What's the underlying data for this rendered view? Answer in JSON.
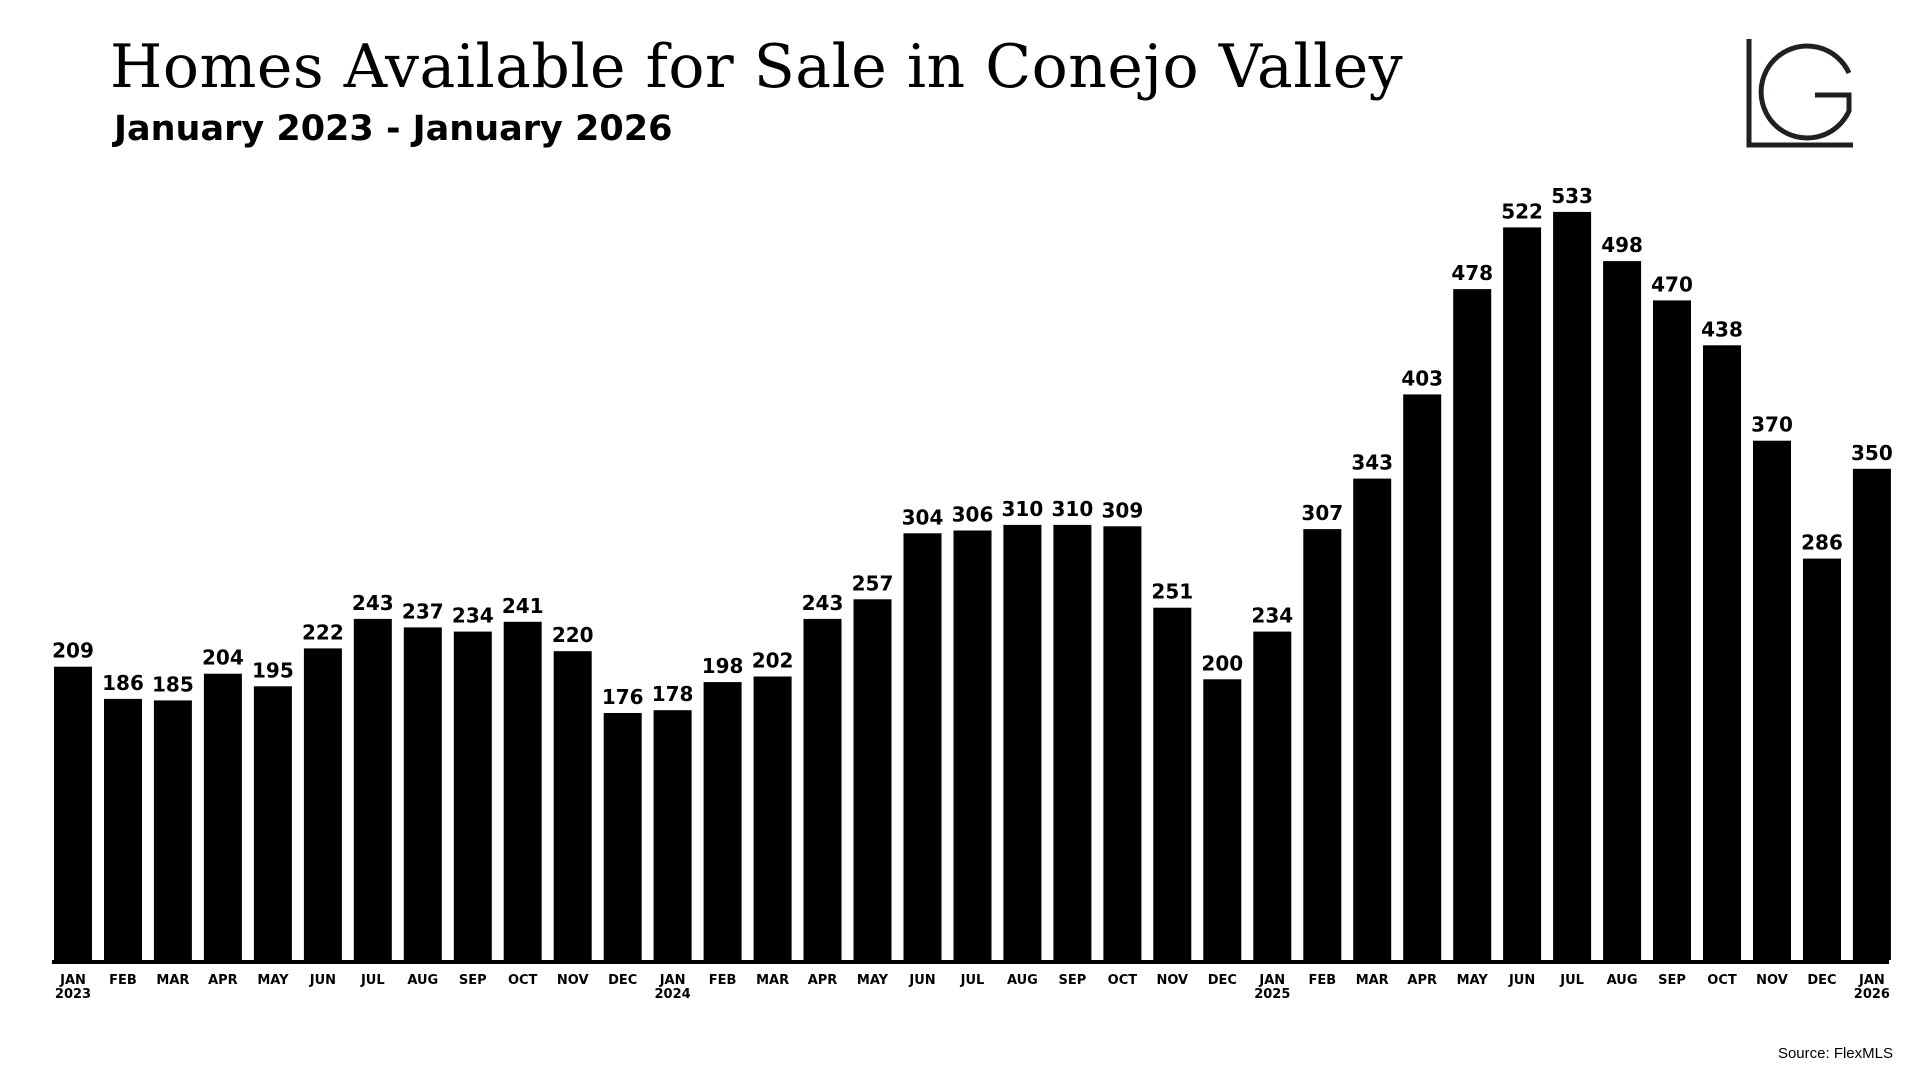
{
  "header": {
    "title": "Homes Available for Sale in Conejo Valley",
    "subtitle": "January 2023 - January 2026"
  },
  "logo": {
    "text": "LG",
    "color": "#231f20"
  },
  "footer": {
    "source": "Source: FlexMLS"
  },
  "colors": {
    "bar": "#000000",
    "text": "#000000",
    "background": "#ffffff"
  },
  "chart_data": {
    "type": "bar",
    "title": "Homes Available for Sale in Conejo Valley",
    "subtitle": "January 2023 - January 2026",
    "xlabel": "",
    "ylabel": "",
    "ylim": [
      0,
      560
    ],
    "grid": false,
    "legend": "none",
    "categories": [
      [
        "JAN",
        "2023"
      ],
      [
        "FEB"
      ],
      [
        "MAR"
      ],
      [
        "APR"
      ],
      [
        "MAY"
      ],
      [
        "JUN"
      ],
      [
        "JUL"
      ],
      [
        "AUG"
      ],
      [
        "SEP"
      ],
      [
        "OCT"
      ],
      [
        "NOV"
      ],
      [
        "DEC"
      ],
      [
        "JAN",
        "2024"
      ],
      [
        "FEB"
      ],
      [
        "MAR"
      ],
      [
        "APR"
      ],
      [
        "MAY"
      ],
      [
        "JUN"
      ],
      [
        "JUL"
      ],
      [
        "AUG"
      ],
      [
        "SEP"
      ],
      [
        "OCT"
      ],
      [
        "NOV"
      ],
      [
        "DEC"
      ],
      [
        "JAN",
        "2025"
      ],
      [
        "FEB"
      ],
      [
        "MAR"
      ],
      [
        "APR"
      ],
      [
        "MAY"
      ],
      [
        "JUN"
      ],
      [
        "JUL"
      ],
      [
        "AUG"
      ],
      [
        "SEP"
      ],
      [
        "OCT"
      ],
      [
        "NOV"
      ],
      [
        "DEC"
      ],
      [
        "JAN",
        "2026"
      ]
    ],
    "values": [
      209,
      186,
      185,
      204,
      195,
      222,
      243,
      237,
      234,
      241,
      220,
      176,
      178,
      198,
      202,
      243,
      257,
      304,
      306,
      310,
      310,
      309,
      251,
      200,
      234,
      307,
      343,
      403,
      478,
      522,
      533,
      498,
      470,
      438,
      370,
      286,
      350
    ]
  }
}
